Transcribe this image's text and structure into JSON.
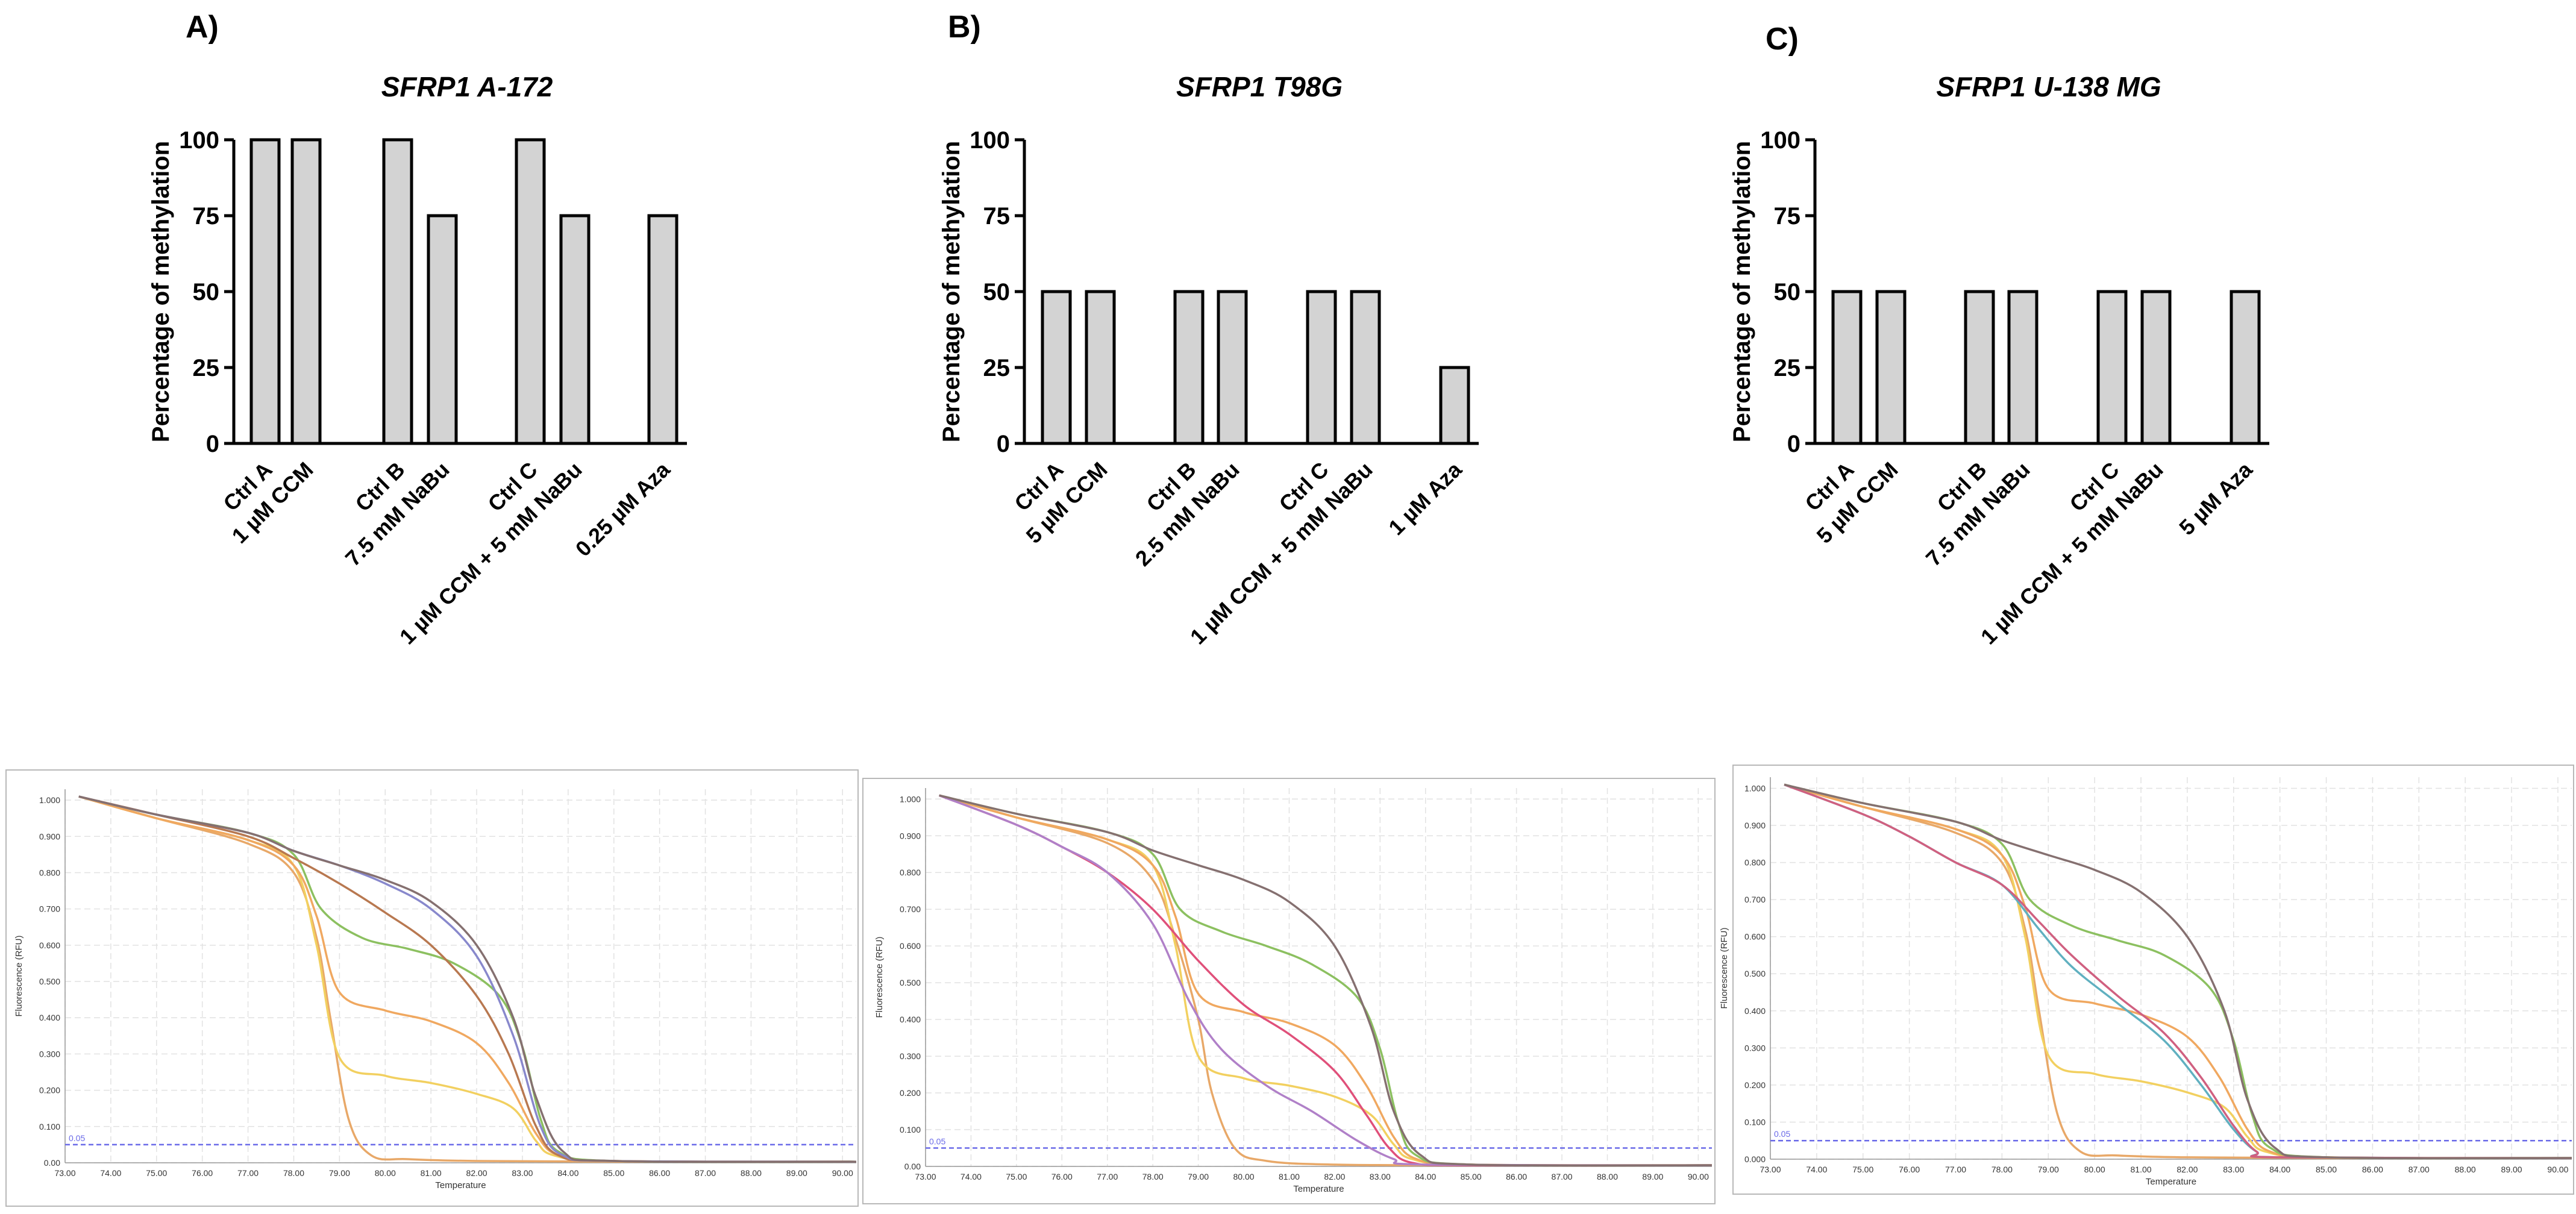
{
  "chart_data": [
    {
      "type": "bar",
      "panel": "A)",
      "title": "SFRP1  A-172",
      "ylabel": "Percentage of methylation",
      "ylim": [
        0,
        100
      ],
      "yticks": [
        "0",
        "25",
        "50",
        "75",
        "100"
      ],
      "categories": [
        "Ctrl A",
        "1 µM CCM",
        "Ctrl B",
        "7.5 mM NaBu",
        "Ctrl C",
        "1 µM CCM + 5 mM NaBu",
        "0.25 µM Aza"
      ],
      "values": [
        100,
        100,
        100,
        75,
        100,
        75,
        75
      ],
      "bar_color": "#d3d3d3"
    },
    {
      "type": "bar",
      "panel": "B)",
      "title": "SFRP1 T98G",
      "ylabel": "Percentage of methylation",
      "ylim": [
        0,
        100
      ],
      "yticks": [
        "0",
        "25",
        "50",
        "75",
        "100"
      ],
      "categories": [
        "Ctrl A",
        "5 µM CCM",
        "Ctrl B",
        "2.5 mM NaBu",
        "Ctrl C",
        "1 µM CCM + 5 mM NaBu",
        "1 µM Aza"
      ],
      "values": [
        50,
        50,
        50,
        50,
        50,
        50,
        25
      ],
      "bar_color": "#d3d3d3"
    },
    {
      "type": "bar",
      "panel": "C)",
      "title": "SFRP1  U-138 MG",
      "ylabel": "Percentage of methylation",
      "ylim": [
        0,
        100
      ],
      "yticks": [
        "0",
        "25",
        "50",
        "75",
        "100"
      ],
      "categories": [
        "Ctrl A",
        "5 µM CCM",
        "Ctrl B",
        "7.5 mM NaBu",
        "Ctrl C",
        "1 µM CCM + 5 mM NaBu",
        "5 µM Aza"
      ],
      "values": [
        50,
        50,
        50,
        50,
        50,
        50,
        50
      ],
      "bar_color": "#d3d3d3"
    },
    {
      "type": "line",
      "name": "melt-curves-A172",
      "xlabel": "Temperature",
      "ylabel": "Fluorescence (RFU)",
      "xlim": [
        73.0,
        90.3
      ],
      "ylim": [
        0,
        1.03
      ],
      "xticks": [
        "73.00",
        "74.00",
        "75.00",
        "76.00",
        "77.00",
        "78.00",
        "79.00",
        "80.00",
        "81.00",
        "82.00",
        "83.00",
        "84.00",
        "85.00",
        "86.00",
        "87.00",
        "88.00",
        "89.00",
        "90.00"
      ],
      "yticks": [
        "0.00",
        "0.100",
        "0.200",
        "0.300",
        "0.400",
        "0.500",
        "0.600",
        "0.700",
        "0.800",
        "0.900",
        "1.000"
      ],
      "threshold": {
        "label": "0.05",
        "value": 0.05,
        "color": "#6a6ae8"
      },
      "series": [
        {
          "name": "orange",
          "color": "#e8a868",
          "x": [
            73.3,
            75,
            77,
            78,
            78.5,
            78.8,
            79.2,
            79.7,
            80.5,
            82,
            85,
            90.3
          ],
          "y": [
            1.01,
            0.95,
            0.88,
            0.8,
            0.62,
            0.4,
            0.12,
            0.02,
            0.01,
            0.005,
            0.003,
            0.003
          ]
        },
        {
          "name": "yellow",
          "color": "#f2d060",
          "x": [
            73.3,
            75,
            77,
            78,
            78.5,
            79,
            80,
            81,
            82,
            82.8,
            83.3,
            83.7,
            85,
            90.3
          ],
          "y": [
            1.01,
            0.95,
            0.89,
            0.82,
            0.6,
            0.29,
            0.24,
            0.22,
            0.19,
            0.15,
            0.06,
            0.02,
            0.005,
            0.003
          ]
        },
        {
          "name": "light-orange",
          "color": "#f0a860",
          "x": [
            73.3,
            75,
            77,
            78,
            78.5,
            79,
            80,
            81,
            82,
            82.7,
            83.3,
            83.8,
            85,
            90.3
          ],
          "y": [
            1.01,
            0.95,
            0.89,
            0.82,
            0.68,
            0.47,
            0.42,
            0.39,
            0.33,
            0.22,
            0.08,
            0.02,
            0.005,
            0.003
          ]
        },
        {
          "name": "green",
          "color": "#8cc060",
          "x": [
            73.3,
            75,
            77,
            78,
            78.6,
            79.5,
            80.5,
            81.5,
            82.5,
            83,
            83.4,
            83.8,
            85,
            90.3
          ],
          "y": [
            1.01,
            0.96,
            0.91,
            0.85,
            0.7,
            0.62,
            0.59,
            0.55,
            0.46,
            0.32,
            0.12,
            0.03,
            0.005,
            0.003
          ]
        },
        {
          "name": "brown",
          "color": "#b87850",
          "x": [
            73.3,
            75,
            77,
            78,
            79,
            80,
            81,
            82,
            82.7,
            83.3,
            83.8,
            85,
            90.3
          ],
          "y": [
            1.01,
            0.96,
            0.9,
            0.84,
            0.77,
            0.69,
            0.6,
            0.46,
            0.3,
            0.1,
            0.02,
            0.005,
            0.003
          ]
        },
        {
          "name": "blue",
          "color": "#8888cc",
          "x": [
            73.3,
            75,
            77,
            78,
            79,
            80,
            81,
            82,
            82.8,
            83.4,
            83.9,
            85,
            90.3
          ],
          "y": [
            1.01,
            0.96,
            0.91,
            0.86,
            0.82,
            0.77,
            0.7,
            0.57,
            0.35,
            0.1,
            0.02,
            0.005,
            0.003
          ]
        },
        {
          "name": "gray",
          "color": "#857070",
          "x": [
            73.3,
            75,
            77,
            78,
            79,
            80,
            81,
            82,
            82.8,
            83.3,
            83.9,
            85,
            90.3
          ],
          "y": [
            1.01,
            0.96,
            0.91,
            0.86,
            0.82,
            0.78,
            0.72,
            0.6,
            0.4,
            0.18,
            0.03,
            0.005,
            0.003
          ]
        }
      ]
    },
    {
      "type": "line",
      "name": "melt-curves-T98G",
      "xlabel": "Temperature",
      "ylabel": "Fluorescence (RFU)",
      "xlim": [
        73.0,
        90.3
      ],
      "ylim": [
        0,
        1.03
      ],
      "xticks": [
        "73.00",
        "74.00",
        "75.00",
        "76.00",
        "77.00",
        "78.00",
        "79.00",
        "80.00",
        "81.00",
        "82.00",
        "83.00",
        "84.00",
        "85.00",
        "86.00",
        "87.00",
        "88.00",
        "89.00",
        "90.00"
      ],
      "yticks": [
        "0.00",
        "0.100",
        "0.200",
        "0.300",
        "0.400",
        "0.500",
        "0.600",
        "0.700",
        "0.800",
        "0.900",
        "1.000"
      ],
      "threshold": {
        "label": "0.05",
        "value": 0.05,
        "color": "#6a6ae8"
      },
      "series": [
        {
          "name": "orange",
          "color": "#e8a868",
          "x": [
            73.3,
            75,
            77,
            78,
            78.5,
            79,
            79.3,
            79.8,
            80.5,
            82,
            85,
            90.3
          ],
          "y": [
            1.01,
            0.95,
            0.88,
            0.78,
            0.62,
            0.4,
            0.2,
            0.05,
            0.015,
            0.005,
            0.003,
            0.003
          ]
        },
        {
          "name": "yellow",
          "color": "#f2d060",
          "x": [
            73.3,
            75,
            77,
            78,
            78.5,
            79,
            80,
            81,
            82,
            82.8,
            83.3,
            83.7,
            85,
            90.3
          ],
          "y": [
            1.01,
            0.95,
            0.89,
            0.82,
            0.6,
            0.3,
            0.24,
            0.22,
            0.19,
            0.14,
            0.06,
            0.02,
            0.005,
            0.003
          ]
        },
        {
          "name": "light-orange",
          "color": "#f0a860",
          "x": [
            73.3,
            75,
            77,
            78,
            78.5,
            79,
            80,
            81,
            82,
            82.7,
            83.3,
            83.8,
            85,
            90.3
          ],
          "y": [
            1.01,
            0.95,
            0.89,
            0.82,
            0.68,
            0.47,
            0.42,
            0.39,
            0.33,
            0.22,
            0.08,
            0.02,
            0.005,
            0.003
          ]
        },
        {
          "name": "green",
          "color": "#8cc060",
          "x": [
            73.3,
            75,
            77,
            78,
            78.6,
            79.5,
            80.5,
            81.5,
            82.5,
            83,
            83.4,
            83.8,
            85,
            90.3
          ],
          "y": [
            1.01,
            0.96,
            0.91,
            0.85,
            0.7,
            0.64,
            0.6,
            0.55,
            0.46,
            0.32,
            0.12,
            0.03,
            0.005,
            0.003
          ]
        },
        {
          "name": "pink",
          "color": "#e0507a",
          "x": [
            73.3,
            75,
            76,
            77,
            78,
            79,
            80,
            81,
            82,
            82.7,
            83.2,
            83.7,
            85,
            90.3
          ],
          "y": [
            1.01,
            0.93,
            0.87,
            0.8,
            0.7,
            0.56,
            0.44,
            0.36,
            0.26,
            0.14,
            0.05,
            0.01,
            0.003,
            0.003
          ]
        },
        {
          "name": "purple",
          "color": "#b080c8",
          "x": [
            73.3,
            75,
            76,
            77,
            78,
            78.8,
            79.5,
            80.5,
            81.5,
            82.5,
            83.3,
            84,
            90.3
          ],
          "y": [
            1.01,
            0.93,
            0.87,
            0.8,
            0.66,
            0.45,
            0.32,
            0.22,
            0.15,
            0.07,
            0.02,
            0.005,
            0.003
          ]
        },
        {
          "name": "gray",
          "color": "#857070",
          "x": [
            73.3,
            75,
            77,
            78,
            79,
            80,
            81,
            82,
            82.8,
            83.3,
            83.9,
            85,
            90.3
          ],
          "y": [
            1.01,
            0.96,
            0.91,
            0.86,
            0.82,
            0.78,
            0.72,
            0.6,
            0.38,
            0.15,
            0.03,
            0.005,
            0.003
          ]
        }
      ]
    },
    {
      "type": "line",
      "name": "melt-curves-U138MG",
      "xlabel": "Temperature",
      "ylabel": "Fluorescence (RFU)",
      "xlim": [
        73.0,
        90.3
      ],
      "ylim": [
        0,
        1.03
      ],
      "xticks": [
        "73.00",
        "74.00",
        "75.00",
        "76.00",
        "77.00",
        "78.00",
        "79.00",
        "80.00",
        "81.00",
        "82.00",
        "83.00",
        "84.00",
        "85.00",
        "86.00",
        "87.00",
        "88.00",
        "89.00",
        "90.00"
      ],
      "yticks": [
        "0.000",
        "0.100",
        "0.200",
        "0.300",
        "0.400",
        "0.500",
        "0.600",
        "0.700",
        "0.800",
        "0.900",
        "1.000"
      ],
      "threshold": {
        "label": "0.05",
        "value": 0.05,
        "color": "#6a6ae8"
      },
      "series": [
        {
          "name": "orange",
          "color": "#e8a868",
          "x": [
            73.3,
            75,
            77,
            78,
            78.5,
            78.8,
            79.2,
            79.7,
            80.5,
            82,
            85,
            90.3
          ],
          "y": [
            1.01,
            0.95,
            0.88,
            0.8,
            0.62,
            0.4,
            0.12,
            0.02,
            0.01,
            0.005,
            0.003,
            0.003
          ]
        },
        {
          "name": "yellow",
          "color": "#f2d060",
          "x": [
            73.3,
            75,
            77,
            78,
            78.5,
            79,
            80,
            81,
            82,
            82.8,
            83.3,
            83.7,
            85,
            90.3
          ],
          "y": [
            1.01,
            0.95,
            0.89,
            0.82,
            0.6,
            0.28,
            0.23,
            0.21,
            0.18,
            0.14,
            0.06,
            0.02,
            0.005,
            0.003
          ]
        },
        {
          "name": "light-orange",
          "color": "#f0a860",
          "x": [
            73.3,
            75,
            77,
            78,
            78.5,
            79,
            80,
            81,
            82,
            82.7,
            83.3,
            83.8,
            85,
            90.3
          ],
          "y": [
            1.01,
            0.95,
            0.89,
            0.82,
            0.68,
            0.46,
            0.42,
            0.39,
            0.33,
            0.22,
            0.08,
            0.02,
            0.005,
            0.003
          ]
        },
        {
          "name": "green",
          "color": "#8cc060",
          "x": [
            73.3,
            75,
            77,
            78,
            78.6,
            79.5,
            80.5,
            81.5,
            82.5,
            83,
            83.4,
            83.8,
            85,
            90.3
          ],
          "y": [
            1.01,
            0.96,
            0.91,
            0.85,
            0.7,
            0.63,
            0.59,
            0.55,
            0.46,
            0.32,
            0.12,
            0.03,
            0.005,
            0.003
          ]
        },
        {
          "name": "teal",
          "color": "#60b0c0",
          "x": [
            73.3,
            75,
            76,
            77,
            78,
            78.8,
            79.5,
            80.5,
            81.5,
            82.3,
            83,
            83.5,
            84,
            90.3
          ],
          "y": [
            1.01,
            0.93,
            0.87,
            0.8,
            0.74,
            0.62,
            0.52,
            0.42,
            0.32,
            0.2,
            0.08,
            0.02,
            0.005,
            0.003
          ]
        },
        {
          "name": "pink",
          "color": "#d06080",
          "x": [
            73.3,
            75,
            76,
            77,
            78,
            78.8,
            79.5,
            80.5,
            81.5,
            82.3,
            83,
            83.5,
            84,
            90.3
          ],
          "y": [
            1.01,
            0.93,
            0.87,
            0.8,
            0.74,
            0.64,
            0.55,
            0.44,
            0.34,
            0.22,
            0.09,
            0.02,
            0.005,
            0.003
          ]
        },
        {
          "name": "gray",
          "color": "#857070",
          "x": [
            73.3,
            75,
            77,
            78,
            79,
            80,
            81,
            82,
            82.8,
            83.3,
            83.9,
            85,
            90.3
          ],
          "y": [
            1.01,
            0.96,
            0.91,
            0.86,
            0.82,
            0.78,
            0.72,
            0.6,
            0.4,
            0.16,
            0.03,
            0.005,
            0.003
          ]
        }
      ]
    }
  ]
}
